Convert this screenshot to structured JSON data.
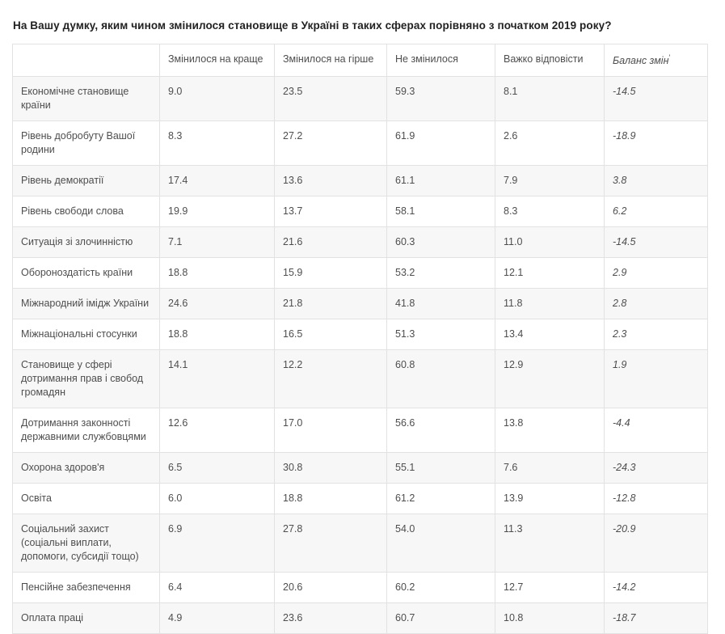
{
  "page": {
    "title": "На Вашу думку, яким чином змінилося становище в Україні в таких сферах порівняно з початком 2019 року?"
  },
  "table": {
    "headers": {
      "topic": "",
      "better": "Змінилося на краще",
      "worse": "Змінилося на гірше",
      "unchanged": "Не змінилося",
      "hard": "Важко відповісти",
      "balance": "Баланс змін",
      "balance_footnote_mark": "′"
    },
    "rows": [
      {
        "label": "Економічне становище країни",
        "better": "9.0",
        "worse": "23.5",
        "unchanged": "59.3",
        "hard": "8.1",
        "balance": "-14.5"
      },
      {
        "label": "Рівень добробуту Вашої родини",
        "better": "8.3",
        "worse": "27.2",
        "unchanged": "61.9",
        "hard": "2.6",
        "balance": "-18.9"
      },
      {
        "label": "Рівень демократії",
        "better": "17.4",
        "worse": "13.6",
        "unchanged": "61.1",
        "hard": "7.9",
        "balance": "3.8"
      },
      {
        "label": "Рівень свободи слова",
        "better": "19.9",
        "worse": "13.7",
        "unchanged": "58.1",
        "hard": "8.3",
        "balance": "6.2"
      },
      {
        "label": "Ситуація зі злочинністю",
        "better": "7.1",
        "worse": "21.6",
        "unchanged": "60.3",
        "hard": "11.0",
        "balance": "-14.5"
      },
      {
        "label": "Обороноздатість країни",
        "better": "18.8",
        "worse": "15.9",
        "unchanged": "53.2",
        "hard": "12.1",
        "balance": "2.9"
      },
      {
        "label": "Міжнародний імідж України",
        "better": "24.6",
        "worse": "21.8",
        "unchanged": "41.8",
        "hard": "11.8",
        "balance": "2.8"
      },
      {
        "label": "Міжнаціональні стосунки",
        "better": "18.8",
        "worse": "16.5",
        "unchanged": "51.3",
        "hard": "13.4",
        "balance": "2.3"
      },
      {
        "label": "Становище у сфері дотримання прав і свобод громадян",
        "better": "14.1",
        "worse": "12.2",
        "unchanged": "60.8",
        "hard": "12.9",
        "balance": "1.9"
      },
      {
        "label": "Дотримання законності державними службовцями",
        "better": "12.6",
        "worse": "17.0",
        "unchanged": "56.6",
        "hard": "13.8",
        "balance": "-4.4"
      },
      {
        "label": "Охорона здоров'я",
        "better": "6.5",
        "worse": "30.8",
        "unchanged": "55.1",
        "hard": "7.6",
        "balance": "-24.3"
      },
      {
        "label": "Освіта",
        "better": "6.0",
        "worse": "18.8",
        "unchanged": "61.2",
        "hard": "13.9",
        "balance": "-12.8"
      },
      {
        "label": "Соціальний захист (соціальні виплати, допомоги, субсидії тощо)",
        "better": "6.9",
        "worse": "27.8",
        "unchanged": "54.0",
        "hard": "11.3",
        "balance": "-20.9"
      },
      {
        "label": "Пенсійне забезпечення",
        "better": "6.4",
        "worse": "20.6",
        "unchanged": "60.2",
        "hard": "12.7",
        "balance": "-14.2"
      },
      {
        "label": "Оплата праці",
        "better": "4.9",
        "worse": "23.6",
        "unchanged": "60.7",
        "hard": "10.8",
        "balance": "-18.7"
      }
    ]
  },
  "colors": {
    "row_alt_background": "#f7f7f7",
    "border": "#e2e2e2",
    "text": "#4e4e4e",
    "title_text": "#222222"
  },
  "chart_data": {
    "type": "table",
    "title": "На Вашу думку, яким чином змінилося становище в Україні в таких сферах порівняно з початком 2019 року?",
    "categories": [
      "Економічне становище країни",
      "Рівень добробуту Вашої родини",
      "Рівень демократії",
      "Рівень свободи слова",
      "Ситуація зі злочинністю",
      "Обороноздатість країни",
      "Міжнародний імідж України",
      "Міжнаціональні стосунки",
      "Становище у сфері дотримання прав і свобод громадян",
      "Дотримання законності державними службовцями",
      "Охорона здоров'я",
      "Освіта",
      "Соціальний захист (соціальні виплати, допомоги, субсидії тощо)",
      "Пенсійне забезпечення",
      "Оплата праці"
    ],
    "series": [
      {
        "name": "Змінилося на краще",
        "values": [
          9.0,
          8.3,
          17.4,
          19.9,
          7.1,
          18.8,
          24.6,
          18.8,
          14.1,
          12.6,
          6.5,
          6.0,
          6.9,
          6.4,
          4.9
        ]
      },
      {
        "name": "Змінилося на гірше",
        "values": [
          23.5,
          27.2,
          13.6,
          13.7,
          21.6,
          15.9,
          21.8,
          16.5,
          12.2,
          17.0,
          30.8,
          18.8,
          27.8,
          20.6,
          23.6
        ]
      },
      {
        "name": "Не змінилося",
        "values": [
          59.3,
          61.9,
          61.1,
          58.1,
          60.3,
          53.2,
          41.8,
          51.3,
          60.8,
          56.6,
          55.1,
          61.2,
          54.0,
          60.2,
          60.7
        ]
      },
      {
        "name": "Важко відповісти",
        "values": [
          8.1,
          2.6,
          7.9,
          8.3,
          11.0,
          12.1,
          11.8,
          13.4,
          12.9,
          13.8,
          7.6,
          13.9,
          11.3,
          12.7,
          10.8
        ]
      },
      {
        "name": "Баланс змін",
        "values": [
          -14.5,
          -18.9,
          3.8,
          6.2,
          -14.5,
          2.9,
          2.8,
          2.3,
          1.9,
          -4.4,
          -24.3,
          -12.8,
          -20.9,
          -14.2,
          -18.7
        ]
      }
    ]
  }
}
